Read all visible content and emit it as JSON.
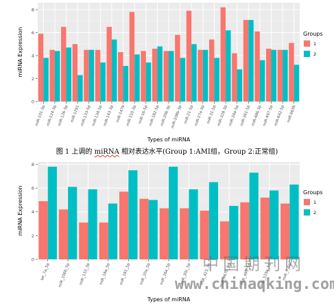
{
  "charts": [
    {
      "id": "chart-top",
      "height": 210,
      "type": "bar",
      "xlabel": "Types of miRNA",
      "ylabel": "miRNA Expression",
      "ylim": [
        0,
        8.6
      ],
      "y_ticks": [
        0,
        2,
        4,
        6,
        8
      ],
      "legend": {
        "title": "Groups",
        "entries": [
          "1",
          "2"
        ],
        "placement": "right"
      },
      "colors": [
        "#F8766D",
        "#00BFC4"
      ],
      "grid": true,
      "categories": [
        "miR-101-3p",
        "miR-124-3p",
        "miR-126-3p",
        "miR-1291",
        "miR-133-5p",
        "miR-134-5p",
        "miR-143-3p",
        "miR-147b",
        "miR-150-3p",
        "miR-16-5p",
        "miR-182-5p",
        "miR-206-3p",
        "miR-208b-3p",
        "miR-21-5p",
        "miR-27a-3p",
        "miR-31-5p",
        "miR-328-3p",
        "miR-34a-5p",
        "miR-361-5p",
        "miR-486-3p",
        "miR-497-5p",
        "miR-642-5p",
        "miR-663b"
      ],
      "series": [
        {
          "name": "1",
          "values": [
            5.9,
            4.5,
            6.5,
            5.0,
            4.5,
            4.5,
            6.5,
            4.3,
            7.8,
            4.4,
            4.6,
            4.4,
            5.8,
            7.9,
            4.5,
            5.4,
            8.2,
            4.2,
            7.1,
            6.1,
            4.6,
            4.5,
            5.1
          ]
        },
        {
          "name": "2",
          "values": [
            3.8,
            4.4,
            4.7,
            2.3,
            4.5,
            3.4,
            5.4,
            3.1,
            4.1,
            3.4,
            4.8,
            4.4,
            3.8,
            5.0,
            4.5,
            3.8,
            6.2,
            2.8,
            7.1,
            3.6,
            4.5,
            4.5,
            3.2
          ]
        }
      ]
    },
    {
      "id": "chart-bottom",
      "height": 211,
      "type": "bar",
      "xlabel": "Types of miRNA",
      "ylabel": "miRNA Expression",
      "ylim": [
        0,
        8.2
      ],
      "y_ticks": [
        0,
        2,
        4,
        6,
        8
      ],
      "legend": {
        "title": "Groups",
        "entries": [
          "1",
          "2"
        ],
        "placement": "right"
      },
      "colors": [
        "#F8766D",
        "#00BFC4"
      ],
      "grid": true,
      "categories": [
        "let_7a_5p",
        "miR_106b_5p",
        "miR_133_3p",
        "miR_18a_5p",
        "miR_181_5p",
        "miR_20a_5p",
        "miR_26a_5p",
        "miR_30c_5p",
        "miR_423_3p",
        "miR_4670_3p",
        "miR_499_5p",
        "miR_519a_5p",
        "miR_7_5p"
      ],
      "series": [
        {
          "name": "1",
          "values": [
            4.9,
            4.2,
            3.1,
            3.1,
            5.7,
            5.1,
            4.3,
            4.3,
            4.1,
            3.2,
            4.8,
            5.2,
            4.7
          ]
        },
        {
          "name": "2",
          "values": [
            7.8,
            6.1,
            5.9,
            4.7,
            7.5,
            5.0,
            7.8,
            5.9,
            6.5,
            4.5,
            7.3,
            5.8,
            6.3
          ]
        }
      ]
    }
  ],
  "caption": {
    "prefix": "图 1 上调的 ",
    "highlight": "miRNA",
    "suffix": " 相对表达水平(Group 1:AMI组，Group 2:正常组)"
  },
  "watermark": {
    "title": "中国期刊网",
    "url": "www.chinaqking.com"
  }
}
